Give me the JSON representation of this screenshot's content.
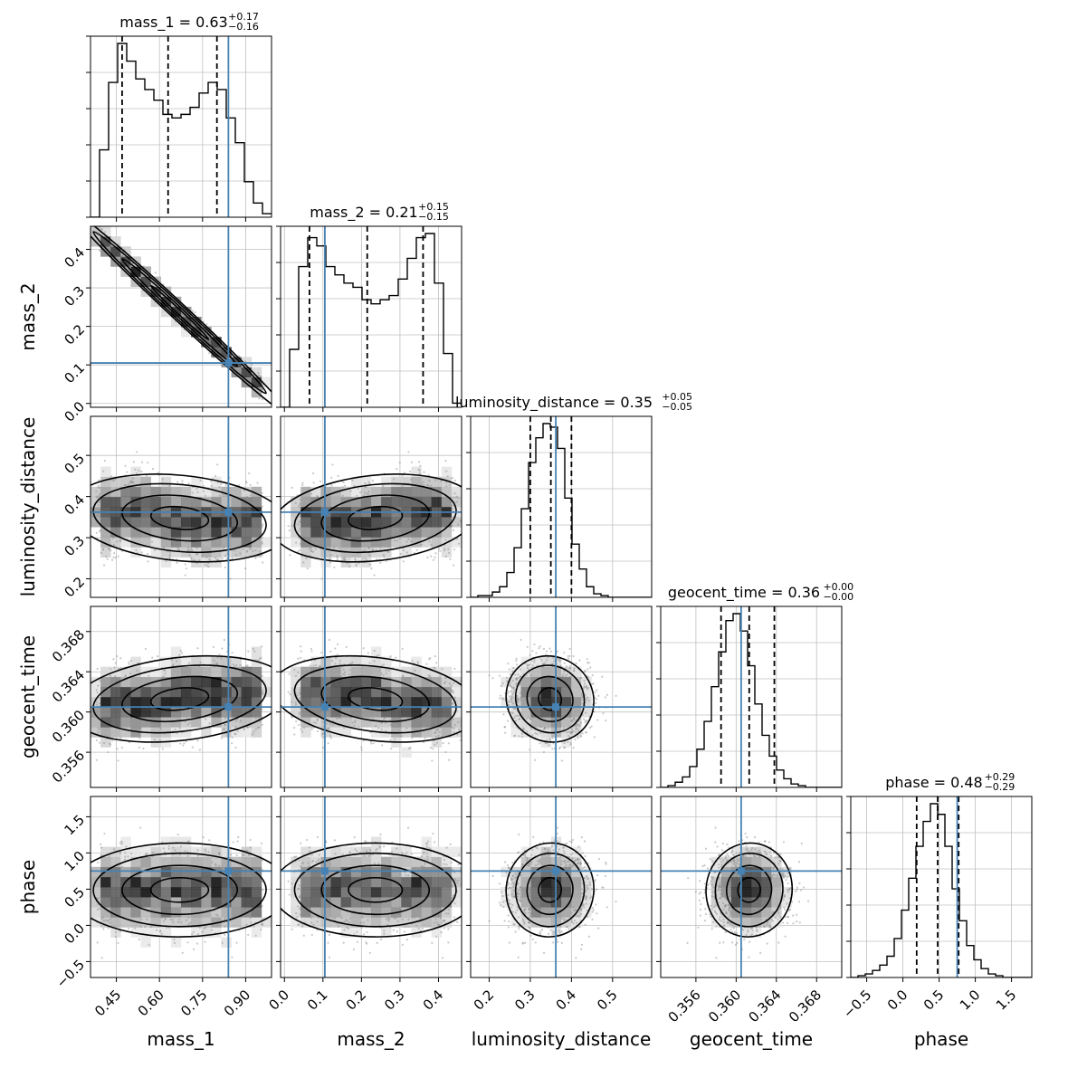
{
  "chart_data": {
    "type": "corner",
    "parameters": [
      "mass_1",
      "mass_2",
      "luminosity_distance",
      "geocent_time",
      "phase"
    ],
    "truth": {
      "mass_1": 0.84,
      "mass_2": 0.105,
      "luminosity_distance": 0.362,
      "geocent_time": 0.3605,
      "phase": 0.75
    },
    "colors": {
      "truth": "#4682b4",
      "hist": "#000000",
      "grid": "#c0c0c0"
    },
    "grid": true,
    "titles": [
      {
        "param": "mass_1",
        "text": "mass_1 = 0.63",
        "sup": "+0.17",
        "sub": "−0.16"
      },
      {
        "param": "mass_2",
        "text": "mass_2 = 0.21",
        "sup": "+0.15",
        "sub": "−0.15"
      },
      {
        "param": "luminosity_distance",
        "text": "luminosity_distance = 0.35",
        "sup": "+0.05",
        "sub": "−0.05"
      },
      {
        "param": "geocent_time",
        "text": "geocent_time = 0.36",
        "sup": "+0.00",
        "sub": "−0.00"
      },
      {
        "param": "phase",
        "text": "phase = 0.48",
        "sup": "+0.29",
        "sub": "−0.29"
      }
    ],
    "axes": {
      "mass_1": {
        "range": [
          0.36,
          0.99
        ],
        "ticks": [
          0.45,
          0.6,
          0.75,
          0.9
        ],
        "tick_labels": [
          "0.45",
          "0.60",
          "0.75",
          "0.90"
        ]
      },
      "mass_2": {
        "range": [
          -0.01,
          0.46
        ],
        "ticks": [
          0.0,
          0.1,
          0.2,
          0.3,
          0.4
        ],
        "tick_labels": [
          "0.0",
          "0.1",
          "0.2",
          "0.3",
          "0.4"
        ]
      },
      "luminosity_distance": {
        "range": [
          0.155,
          0.595
        ],
        "ticks": [
          0.2,
          0.3,
          0.4,
          0.5
        ],
        "tick_labels": [
          "0.2",
          "0.3",
          "0.4",
          "0.5"
        ]
      },
      "geocent_time": {
        "range": [
          0.3525,
          0.3705
        ],
        "ticks": [
          0.356,
          0.36,
          0.364,
          0.368
        ],
        "tick_labels": [
          "0.356",
          "0.360",
          "0.364",
          "0.368"
        ]
      },
      "phase": {
        "range": [
          -0.72,
          1.78
        ],
        "ticks": [
          -0.5,
          0.0,
          0.5,
          1.0,
          1.5
        ],
        "tick_labels": [
          "−0.5",
          "0.0",
          "0.5",
          "1.0",
          "1.5"
        ]
      }
    },
    "quantiles": {
      "mass_1": [
        0.47,
        0.63,
        0.8
      ],
      "mass_2": [
        0.065,
        0.215,
        0.36
      ],
      "luminosity_distance": [
        0.3,
        0.35,
        0.4
      ],
      "geocent_time": [
        0.3585,
        0.3613,
        0.3638
      ],
      "phase": [
        0.19,
        0.48,
        0.77
      ]
    },
    "histograms": {
      "mass_1": {
        "start": 0.36,
        "step": 0.0315,
        "counts": [
          0,
          38,
          76,
          98,
          88,
          78,
          72,
          66,
          58,
          56,
          58,
          62,
          70,
          76,
          72,
          56,
          42,
          20,
          8,
          2
        ]
      },
      "mass_2": {
        "start": -0.01,
        "step": 0.0235,
        "counts": [
          0,
          28,
          68,
          82,
          78,
          68,
          64,
          60,
          58,
          52,
          50,
          52,
          54,
          62,
          72,
          82,
          84,
          60,
          26,
          2
        ]
      },
      "luminosity_distance": {
        "start": 0.155,
        "step": 0.0176,
        "counts": [
          0,
          1,
          1,
          3,
          6,
          14,
          28,
          50,
          76,
          90,
          98,
          96,
          84,
          56,
          30,
          16,
          6,
          2,
          1,
          0,
          0,
          0,
          0,
          0,
          0
        ]
      },
      "geocent_time": {
        "start": 0.3525,
        "step": 0.00072,
        "counts": [
          0,
          1,
          3,
          6,
          12,
          22,
          38,
          58,
          78,
          96,
          100,
          90,
          70,
          48,
          30,
          18,
          10,
          5,
          2,
          1,
          0,
          0,
          0,
          0,
          0
        ]
      },
      "phase": {
        "start": -0.72,
        "step": 0.1,
        "counts": [
          0,
          1,
          2,
          4,
          7,
          12,
          22,
          38,
          56,
          74,
          88,
          98,
          92,
          74,
          50,
          32,
          18,
          10,
          5,
          2,
          1,
          0,
          0,
          0,
          0
        ]
      }
    }
  }
}
